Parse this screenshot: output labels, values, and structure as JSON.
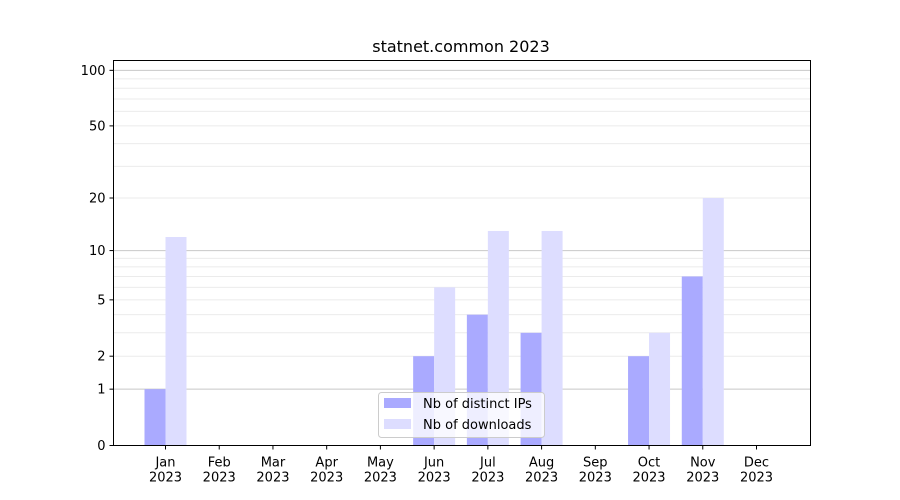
{
  "chart_data": {
    "type": "bar",
    "title": "statnet.common 2023",
    "xlabel": "",
    "ylabel": "",
    "yscale": "log10(1+y)",
    "ylim": [
      0,
      113
    ],
    "yticks": [
      0,
      1,
      2,
      5,
      10,
      20,
      50,
      100
    ],
    "categories": [
      "Jan\n2023",
      "Feb\n2023",
      "Mar\n2023",
      "Apr\n2023",
      "May\n2023",
      "Jun\n2023",
      "Jul\n2023",
      "Aug\n2023",
      "Sep\n2023",
      "Oct\n2023",
      "Nov\n2023",
      "Dec\n2023"
    ],
    "series": [
      {
        "name": "Nb of distinct IPs",
        "color": "#aaaaff",
        "values": [
          1,
          0,
          0,
          0,
          0,
          2,
          4,
          3,
          0,
          2,
          7,
          0
        ]
      },
      {
        "name": "Nb of downloads",
        "color": "#ddddff",
        "values": [
          12,
          0,
          0,
          0,
          0,
          6,
          13,
          13,
          0,
          3,
          20,
          0
        ]
      }
    ],
    "grid": true,
    "legend_position": "lower-center"
  }
}
